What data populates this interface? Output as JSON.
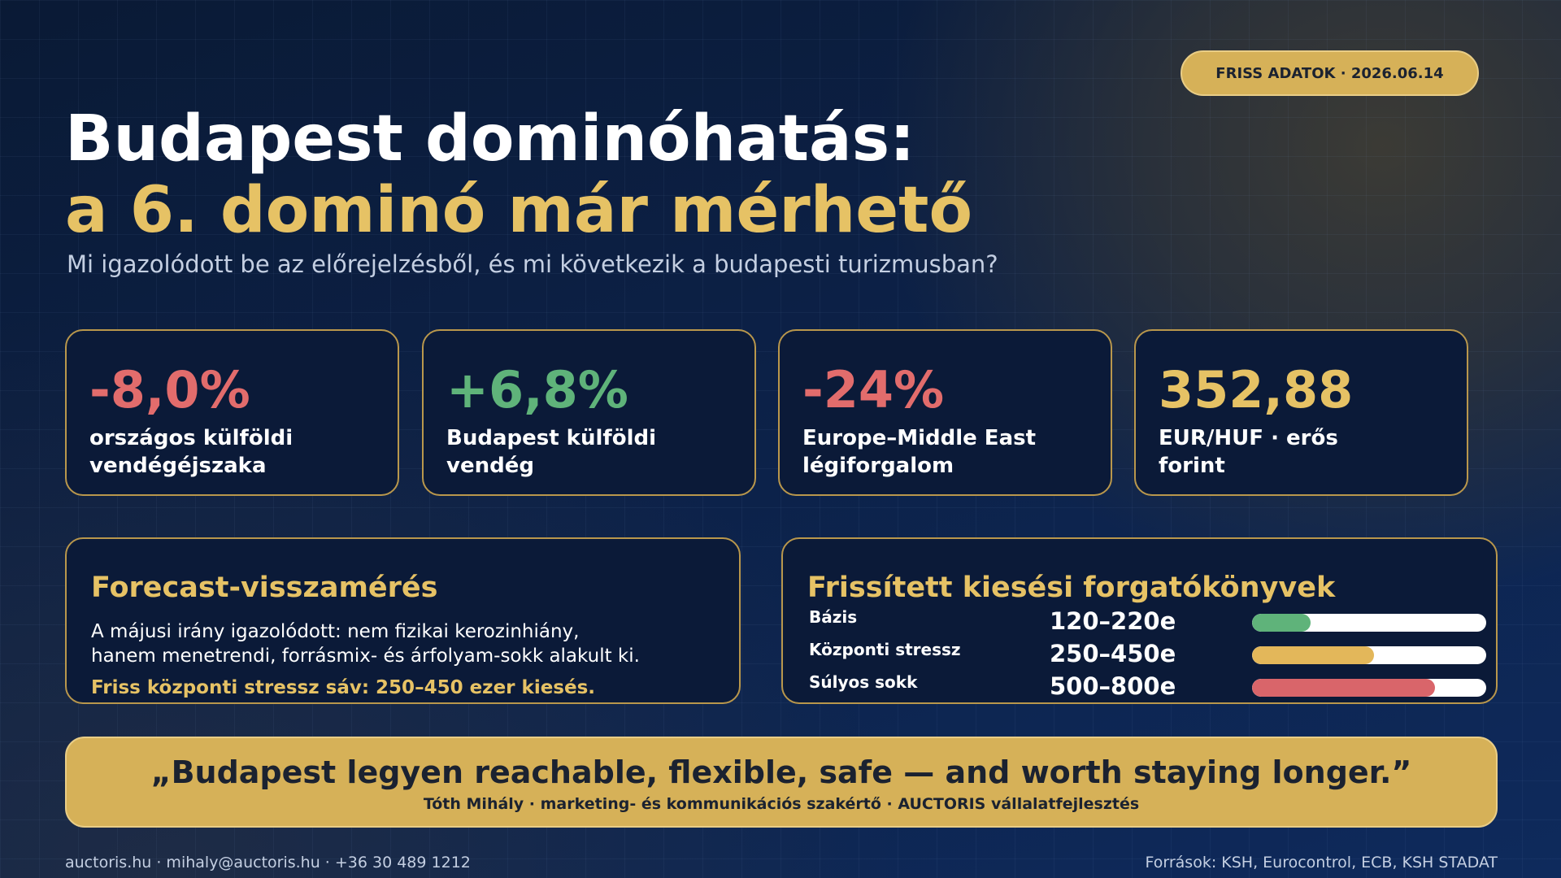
{
  "badge": "FRISS ADATOK · 2026.06.14",
  "title": {
    "line1": "Budapest dominóhatás:",
    "line2": "a 6. dominó már mérhető",
    "subtitle": "Mi igazolódott be az előrejelzésből, és mi következik a budapesti turizmusban?"
  },
  "stats": [
    {
      "value": "-8,0%",
      "label": "országos külföldi vendégéjszaka",
      "color": "#e26c6c"
    },
    {
      "value": "+6,8%",
      "label": "Budapest külföldi vendég",
      "color": "#5fb37a"
    },
    {
      "value": "-24%",
      "label": "Europe–Middle East légiforgalom",
      "color": "#e26c6c"
    },
    {
      "value": "352,88",
      "label": "EUR/HUF · erős forint",
      "color": "#e6c265"
    }
  ],
  "forecast": {
    "title": "Forecast-visszamérés",
    "body_line1": "A májusi irány igazolódott: nem fizikai kerozinhiány,",
    "body_line2": "hanem menetrendi, forrásmix- és árfolyam-sokk alakult ki.",
    "highlight": "Friss központi stressz sáv: 250–450 ezer kiesés."
  },
  "scenarios": {
    "title": "Frissített kiesési forgatókönyvek",
    "items": [
      {
        "name": "Bázis",
        "range": "120–220e",
        "fill": 0.25,
        "color": "#5fb37a"
      },
      {
        "name": "Központi stressz",
        "range": "250–450e",
        "fill": 0.52,
        "color": "#e3b75a"
      },
      {
        "name": "Súlyos sokk",
        "range": "500–800e",
        "fill": 0.78,
        "color": "#d9656a"
      }
    ]
  },
  "quote": {
    "text": "„Budapest legyen reachable, flexible, safe — and worth staying longer.”",
    "author": "Tóth Mihály · marketing- és kommunikációs szakértő · AUCTORIS vállalatfejlesztés"
  },
  "footer": {
    "contact": "auctoris.hu · mihaly@auctoris.hu · +36 30 489 1212",
    "sources": "Források: KSH, Eurocontrol, ECB, KSH STADAT"
  }
}
